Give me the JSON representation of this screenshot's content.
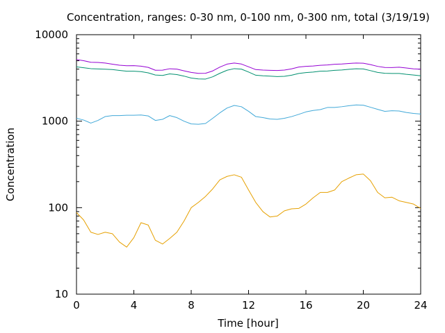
{
  "chart_data": {
    "type": "line",
    "title": "Concentration, ranges: 0-30 nm, 0-100 nm, 0-300 nm, total (3/19/19)",
    "xlabel": "Time [hour]",
    "ylabel": "Concentration",
    "xlim": [
      0,
      24
    ],
    "ylim": [
      10,
      10000
    ],
    "yscale": "log",
    "grid": false,
    "x_ticks": [
      0,
      4,
      8,
      12,
      16,
      20,
      24
    ],
    "x_tick_labels": [
      "0",
      "4",
      "8",
      "12",
      "16",
      "20",
      "24"
    ],
    "y_ticks": [
      10,
      100,
      1000,
      10000
    ],
    "y_tick_labels": [
      "10",
      "100",
      "1000",
      "10000"
    ],
    "x": [
      0,
      0.5,
      1,
      1.5,
      2,
      2.5,
      3,
      3.5,
      4,
      4.5,
      5,
      5.5,
      6,
      6.5,
      7,
      7.5,
      8,
      8.5,
      9,
      9.5,
      10,
      10.5,
      11,
      11.5,
      12,
      12.5,
      13,
      13.5,
      14,
      14.5,
      15,
      15.5,
      16,
      16.5,
      17,
      17.5,
      18,
      18.5,
      19,
      19.5,
      20,
      20.5,
      21,
      21.5,
      22,
      22.5,
      23,
      23.5,
      24
    ],
    "series": [
      {
        "color": "#e6a000",
        "values": [
          88,
          72,
          52,
          49,
          52,
          50,
          40,
          35,
          45,
          67,
          63,
          42,
          38,
          44,
          52,
          70,
          100,
          115,
          135,
          165,
          210,
          230,
          240,
          225,
          160,
          115,
          90,
          78,
          80,
          92,
          97,
          98,
          110,
          130,
          150,
          150,
          160,
          200,
          220,
          240,
          245,
          205,
          150,
          130,
          132,
          120,
          115,
          110,
          98
        ]
      },
      {
        "color": "#40a8d8",
        "values": [
          1080,
          1030,
          950,
          1020,
          1130,
          1160,
          1160,
          1170,
          1170,
          1180,
          1150,
          1020,
          1050,
          1160,
          1100,
          1000,
          930,
          920,
          940,
          1080,
          1250,
          1420,
          1520,
          1470,
          1300,
          1130,
          1100,
          1060,
          1050,
          1080,
          1130,
          1200,
          1280,
          1330,
          1360,
          1440,
          1440,
          1470,
          1510,
          1540,
          1530,
          1450,
          1370,
          1300,
          1320,
          1310,
          1260,
          1230,
          1210
        ]
      },
      {
        "color": "#00906f",
        "values": [
          4250,
          4150,
          4050,
          4020,
          3990,
          3950,
          3860,
          3780,
          3780,
          3740,
          3620,
          3420,
          3380,
          3520,
          3460,
          3320,
          3150,
          3080,
          3070,
          3260,
          3580,
          3880,
          4050,
          4000,
          3700,
          3400,
          3350,
          3320,
          3280,
          3300,
          3400,
          3560,
          3650,
          3700,
          3780,
          3800,
          3870,
          3910,
          3980,
          4040,
          4020,
          3840,
          3660,
          3580,
          3560,
          3560,
          3480,
          3420,
          3350
        ]
      },
      {
        "color": "#9400d3",
        "values": [
          5150,
          5000,
          4800,
          4780,
          4700,
          4560,
          4440,
          4380,
          4390,
          4330,
          4190,
          3880,
          3890,
          4040,
          4000,
          3820,
          3660,
          3570,
          3580,
          3810,
          4220,
          4570,
          4700,
          4580,
          4250,
          3950,
          3900,
          3870,
          3850,
          3900,
          4030,
          4230,
          4310,
          4350,
          4430,
          4470,
          4550,
          4580,
          4650,
          4700,
          4680,
          4510,
          4300,
          4180,
          4170,
          4210,
          4120,
          4030,
          3990
        ]
      }
    ]
  }
}
